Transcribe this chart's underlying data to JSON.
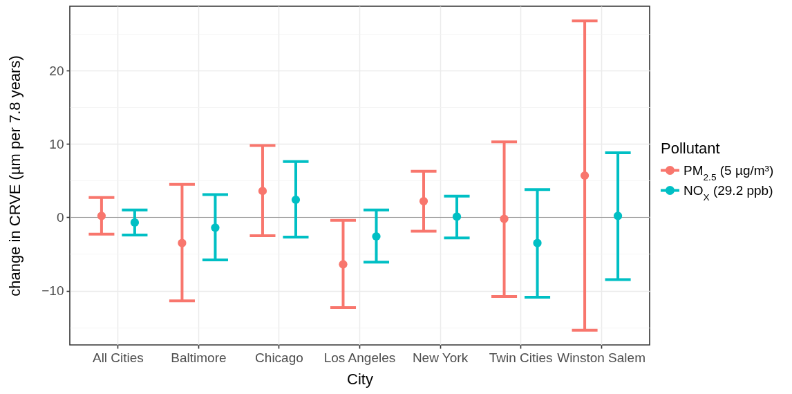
{
  "chart_data": {
    "type": "scatter",
    "xlabel": "City",
    "ylabel": "change in CRVE (µm per 7.8 years)",
    "legend_title": "Pollutant",
    "categories": [
      "All Cities",
      "Baltimore",
      "Chicago",
      "Los Angeles",
      "New York",
      "Twin Cities",
      "Winston Salem"
    ],
    "series": [
      {
        "name": "PM$_{2.5}$ (5 µg/m³)",
        "color": "#f8766d",
        "values": [
          0.2,
          -3.5,
          3.6,
          -6.4,
          2.2,
          -0.2,
          5.7
        ],
        "errors": [
          [
            -2.3,
            2.7
          ],
          [
            -11.4,
            4.5
          ],
          [
            -2.5,
            9.8
          ],
          [
            -12.3,
            -0.4
          ],
          [
            -1.9,
            6.3
          ],
          [
            -10.8,
            10.3
          ],
          [
            -15.4,
            26.8
          ]
        ]
      },
      {
        "name": "NO$_{X}$ (29.2 ppb)",
        "color": "#00bfc4",
        "values": [
          -0.7,
          -1.4,
          2.4,
          -2.6,
          0.1,
          -3.5,
          0.2
        ],
        "errors": [
          [
            -2.4,
            1.0
          ],
          [
            -5.8,
            3.1
          ],
          [
            -2.7,
            7.6
          ],
          [
            -6.1,
            1.0
          ],
          [
            -2.8,
            2.9
          ],
          [
            -10.9,
            3.8
          ],
          [
            -8.5,
            8.8
          ]
        ]
      }
    ],
    "ylim": [
      -17.4,
      28.8
    ],
    "yticks": [
      {
        "value": -15,
        "label": null
      },
      {
        "value": -10,
        "label": "−10"
      },
      {
        "value": -5,
        "label": null
      },
      0,
      {
        "value": 5,
        "label": null
      },
      10,
      {
        "value": 15,
        "label": null
      },
      20,
      {
        "value": 25,
        "label": null
      }
    ],
    "ref_lines": [
      {
        "axis": "y",
        "value": 0,
        "color": "#999999"
      }
    ],
    "grid": true,
    "legend": "right",
    "marker": "circle"
  }
}
